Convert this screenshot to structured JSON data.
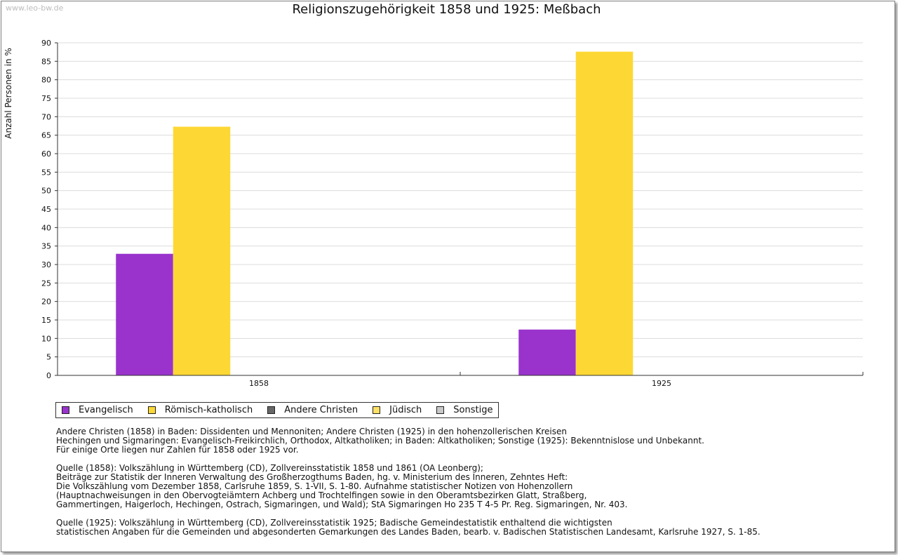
{
  "watermark": "www.leo-bw.de",
  "colors": {
    "evangelisch": "#9933cc",
    "roemisch_katholisch": "#fdd835",
    "andere_christen": "#666666",
    "juedisch": "#ffe066",
    "sonstige": "#c8c8c8"
  },
  "chart_data": {
    "type": "bar",
    "title": "Religionszugehörigkeit 1858 und 1925: Meßbach",
    "xlabel": "",
    "ylabel": "Anzahl Personen in %",
    "ylim": [
      0,
      90
    ],
    "yticks": [
      0,
      5,
      10,
      15,
      20,
      25,
      30,
      35,
      40,
      45,
      50,
      55,
      60,
      65,
      70,
      75,
      80,
      85,
      90
    ],
    "categories": [
      "1858",
      "1925"
    ],
    "grid": true,
    "legend_position": "bottom",
    "series": [
      {
        "name": "Evangelisch",
        "color": "#9933cc",
        "values": [
          32.9,
          12.4
        ]
      },
      {
        "name": "Römisch-katholisch",
        "color": "#fdd835",
        "values": [
          67.3,
          87.6
        ]
      },
      {
        "name": "Andere Christen",
        "color": "#666666",
        "values": [
          0,
          0
        ]
      },
      {
        "name": "Jüdisch",
        "color": "#ffe066",
        "values": [
          0,
          0
        ]
      },
      {
        "name": "Sonstige",
        "color": "#c8c8c8",
        "values": [
          0,
          0
        ]
      }
    ]
  },
  "notes": {
    "definitions": "Andere Christen (1858) in Baden: Dissidenten und Mennoniten; Andere Christen (1925) in den hohenzollerischen Kreisen\nHechingen und Sigmaringen: Evangelisch-Freikirchlich, Orthodox, Altkatholiken; in Baden: Altkatholiken; Sonstige (1925): Bekenntnislose und Unbekannt.\nFür einige Orte liegen nur Zahlen für 1858 oder 1925 vor.",
    "source_1858": "Quelle (1858): Volkszählung in Württemberg (CD), Zollvereinsstatistik 1858 und 1861 (OA Leonberg);\nBeiträge zur Statistik der Inneren Verwaltung des Großherzogthums Baden, hg. v. Ministerium des Inneren, Zehntes Heft:\nDie Volkszählung vom Dezember 1858, Carlsruhe 1859, S. 1-VII, S. 1-80. Aufnahme statistischer Notizen von Hohenzollern\n(Hauptnachweisungen in den Obervogteiämtern Achberg und Trochtelfingen sowie in den Oberamtsbezirken Glatt, Straßberg,\nGammertingen, Haigerloch, Hechingen, Ostrach, Sigmaringen, und Wald); StA Sigmaringen Ho 235 T 4-5 Pr. Reg. Sigmaringen, Nr. 403.",
    "source_1925": "Quelle (1925): Volkszählung in Württemberg (CD), Zollvereinsstatistik 1925; Badische Gemeindestatistik enthaltend die wichtigsten\nstatistischen Angaben für die Gemeinden und abgesonderten Gemarkungen des Landes Baden, bearb. v. Badischen Statistischen Landesamt, Karlsruhe 1927, S. 1-85."
  }
}
